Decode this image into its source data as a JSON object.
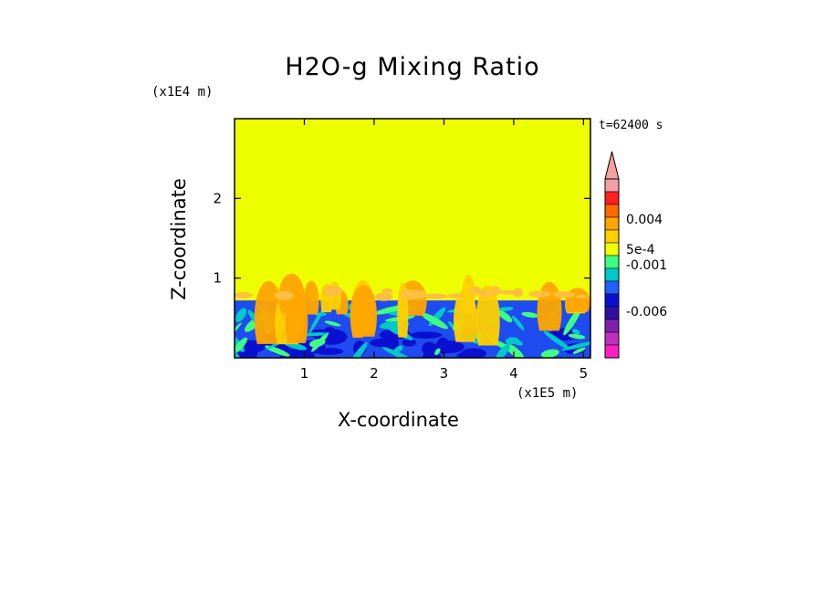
{
  "chart_data": {
    "type": "heatmap",
    "title": "H2O-g Mixing Ratio",
    "xlabel": "X-coordinate",
    "ylabel": "Z-coordinate",
    "x_unit": "(x1E5 m)",
    "y_unit": "(x1E4 m)",
    "time_label": "t=62400 s",
    "xlim": [
      0,
      5.1
    ],
    "ylim": [
      0,
      3.0
    ],
    "x_ticks": [
      "1",
      "2",
      "3",
      "4",
      "5"
    ],
    "y_ticks": [
      "1",
      "2"
    ],
    "colorbar": {
      "labels": [
        "0.004",
        "5e-4",
        "-0.001",
        "-0.006"
      ],
      "colors_top_to_bottom": [
        "#f4a0a0",
        "#f0a0a8",
        "#ff2020",
        "#ff6a00",
        "#ffa500",
        "#ffd000",
        "#f0ff00",
        "#40ff80",
        "#00c8c8",
        "#2060ff",
        "#0a10d0",
        "#3010a0",
        "#8020b0",
        "#c030c0",
        "#ff20c0"
      ]
    },
    "fields": {
      "upper_layer_color": "#eeff00",
      "boundary_layer_top": 0.72,
      "boundary_layer_color": "#1f4cf0",
      "plume_color": "#ffa500"
    },
    "grid": false,
    "legend": "right"
  },
  "colors": {
    "background": "#ffffff",
    "axis": "#000000"
  }
}
